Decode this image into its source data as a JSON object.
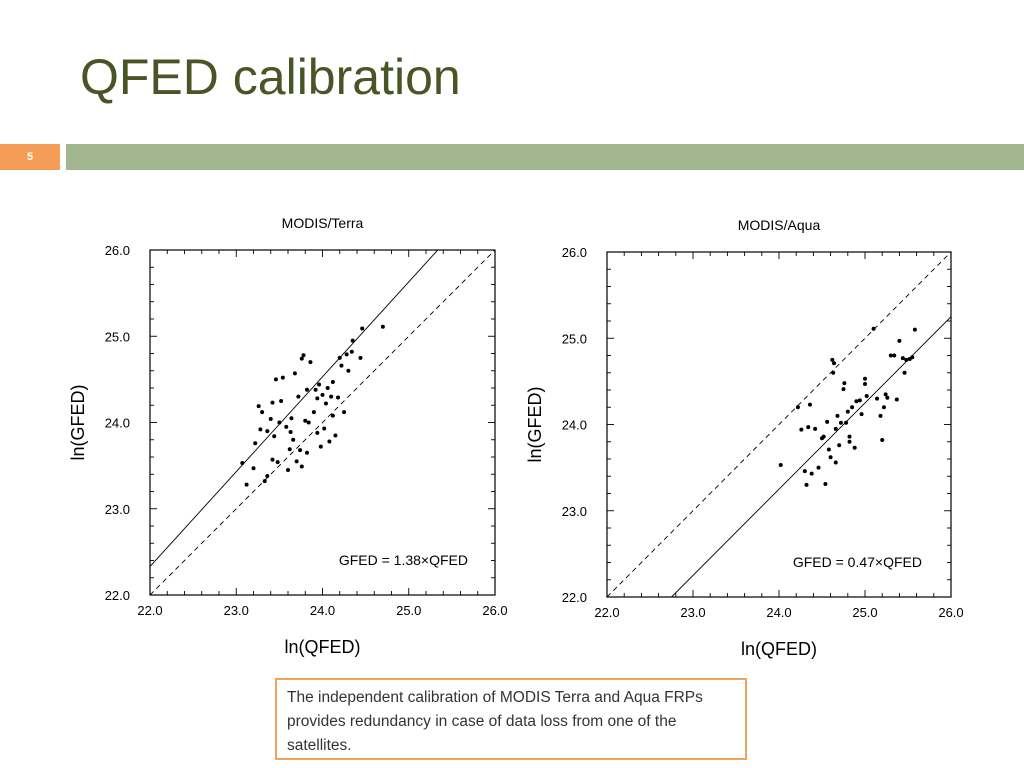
{
  "slide": {
    "title": "QFED calibration",
    "number": "5",
    "caption": "The independent calibration of MODIS Terra and Aqua FRPs provides redundancy in case of data loss from one of the satellites.",
    "title_color": "#4a5526",
    "bar_color": "#a2b68f",
    "number_color": "#f59d56"
  },
  "chart_data": [
    {
      "type": "scatter",
      "title": "MODIS/Terra",
      "xlabel": "ln(QFED)",
      "ylabel": "ln(GFED)",
      "xlim": [
        22.0,
        26.0
      ],
      "ylim": [
        22.0,
        26.0
      ],
      "xticks": [
        "22.0",
        "23.0",
        "24.0",
        "25.0",
        "26.0"
      ],
      "yticks": [
        "22.0",
        "23.0",
        "24.0",
        "25.0",
        "26.0"
      ],
      "annotation": "GFED =  1.38×QFED",
      "slope": 1.38,
      "grid": false,
      "points": [
        [
          23.07,
          23.53
        ],
        [
          23.12,
          23.28
        ],
        [
          23.2,
          23.47
        ],
        [
          23.22,
          23.76
        ],
        [
          23.26,
          24.19
        ],
        [
          23.28,
          23.92
        ],
        [
          23.3,
          24.12
        ],
        [
          23.33,
          23.32
        ],
        [
          23.36,
          23.38
        ],
        [
          23.36,
          23.9
        ],
        [
          23.4,
          24.04
        ],
        [
          23.42,
          23.57
        ],
        [
          23.42,
          24.23
        ],
        [
          23.44,
          23.84
        ],
        [
          23.46,
          24.5
        ],
        [
          23.48,
          23.54
        ],
        [
          23.5,
          24.0
        ],
        [
          23.52,
          24.25
        ],
        [
          23.54,
          24.52
        ],
        [
          23.58,
          23.95
        ],
        [
          23.6,
          23.45
        ],
        [
          23.62,
          23.69
        ],
        [
          23.63,
          23.89
        ],
        [
          23.64,
          24.05
        ],
        [
          23.66,
          23.8
        ],
        [
          23.68,
          24.57
        ],
        [
          23.7,
          23.55
        ],
        [
          23.72,
          24.3
        ],
        [
          23.74,
          23.68
        ],
        [
          23.76,
          24.74
        ],
        [
          23.76,
          23.49
        ],
        [
          23.78,
          24.78
        ],
        [
          23.8,
          24.02
        ],
        [
          23.82,
          23.65
        ],
        [
          23.82,
          24.38
        ],
        [
          23.84,
          24.0
        ],
        [
          23.86,
          24.7
        ],
        [
          23.9,
          24.12
        ],
        [
          23.92,
          24.38
        ],
        [
          23.94,
          24.28
        ],
        [
          23.94,
          23.88
        ],
        [
          23.96,
          24.44
        ],
        [
          23.98,
          23.72
        ],
        [
          24.0,
          24.32
        ],
        [
          24.02,
          23.93
        ],
        [
          24.04,
          24.22
        ],
        [
          24.06,
          24.4
        ],
        [
          24.08,
          23.78
        ],
        [
          24.1,
          24.3
        ],
        [
          24.12,
          24.47
        ],
        [
          24.12,
          24.08
        ],
        [
          24.15,
          23.85
        ],
        [
          24.18,
          24.29
        ],
        [
          24.2,
          24.75
        ],
        [
          24.22,
          24.66
        ],
        [
          24.25,
          24.12
        ],
        [
          24.28,
          24.79
        ],
        [
          24.3,
          24.6
        ],
        [
          24.34,
          24.82
        ],
        [
          24.35,
          24.95
        ],
        [
          24.44,
          24.75
        ],
        [
          24.46,
          25.09
        ],
        [
          24.7,
          25.11
        ]
      ],
      "solid_line": [
        [
          22.0,
          22.33
        ],
        [
          26.0,
          26.73
        ]
      ],
      "dashed_line": [
        [
          22.0,
          22.0
        ],
        [
          26.0,
          26.0
        ]
      ]
    },
    {
      "type": "scatter",
      "title": "MODIS/Aqua",
      "xlabel": "ln(QFED)",
      "ylabel": "ln(GFED)",
      "xlim": [
        22.0,
        26.0
      ],
      "ylim": [
        22.0,
        26.0
      ],
      "xticks": [
        "22.0",
        "23.0",
        "24.0",
        "25.0",
        "26.0"
      ],
      "yticks": [
        "22.0",
        "23.0",
        "24.0",
        "25.0",
        "26.0"
      ],
      "annotation": "GFED =  0.47×QFED",
      "slope": 0.47,
      "grid": false,
      "points": [
        [
          24.02,
          23.53
        ],
        [
          24.22,
          24.2
        ],
        [
          24.26,
          23.94
        ],
        [
          24.3,
          23.46
        ],
        [
          24.32,
          23.3
        ],
        [
          24.34,
          23.97
        ],
        [
          24.36,
          24.23
        ],
        [
          24.38,
          23.43
        ],
        [
          24.42,
          23.95
        ],
        [
          24.46,
          23.5
        ],
        [
          24.5,
          23.84
        ],
        [
          24.52,
          23.86
        ],
        [
          24.54,
          23.31
        ],
        [
          24.56,
          24.03
        ],
        [
          24.58,
          23.71
        ],
        [
          24.6,
          23.62
        ],
        [
          24.62,
          24.75
        ],
        [
          24.63,
          24.6
        ],
        [
          24.64,
          24.71
        ],
        [
          24.66,
          23.56
        ],
        [
          24.66,
          23.95
        ],
        [
          24.68,
          24.1
        ],
        [
          24.7,
          23.76
        ],
        [
          24.72,
          24.02
        ],
        [
          24.75,
          24.41
        ],
        [
          24.76,
          24.48
        ],
        [
          24.78,
          24.02
        ],
        [
          24.8,
          24.15
        ],
        [
          24.82,
          23.8
        ],
        [
          24.82,
          23.86
        ],
        [
          24.85,
          24.2
        ],
        [
          24.88,
          23.73
        ],
        [
          24.9,
          24.27
        ],
        [
          24.94,
          24.28
        ],
        [
          24.96,
          24.12
        ],
        [
          25.0,
          24.47
        ],
        [
          25.0,
          24.53
        ],
        [
          25.02,
          24.33
        ],
        [
          25.1,
          25.11
        ],
        [
          25.14,
          24.3
        ],
        [
          25.18,
          24.1
        ],
        [
          25.2,
          23.82
        ],
        [
          25.22,
          24.2
        ],
        [
          25.24,
          24.35
        ],
        [
          25.26,
          24.31
        ],
        [
          25.3,
          24.8
        ],
        [
          25.34,
          24.8
        ],
        [
          25.37,
          24.29
        ],
        [
          25.4,
          24.97
        ],
        [
          25.44,
          24.77
        ],
        [
          25.46,
          24.6
        ],
        [
          25.48,
          24.75
        ],
        [
          25.52,
          24.76
        ],
        [
          25.55,
          24.78
        ],
        [
          25.58,
          25.1
        ]
      ],
      "solid_line": [
        [
          22.75,
          22.0
        ],
        [
          26.0,
          25.25
        ]
      ],
      "dashed_line": [
        [
          22.0,
          22.0
        ],
        [
          26.0,
          26.0
        ]
      ]
    }
  ]
}
